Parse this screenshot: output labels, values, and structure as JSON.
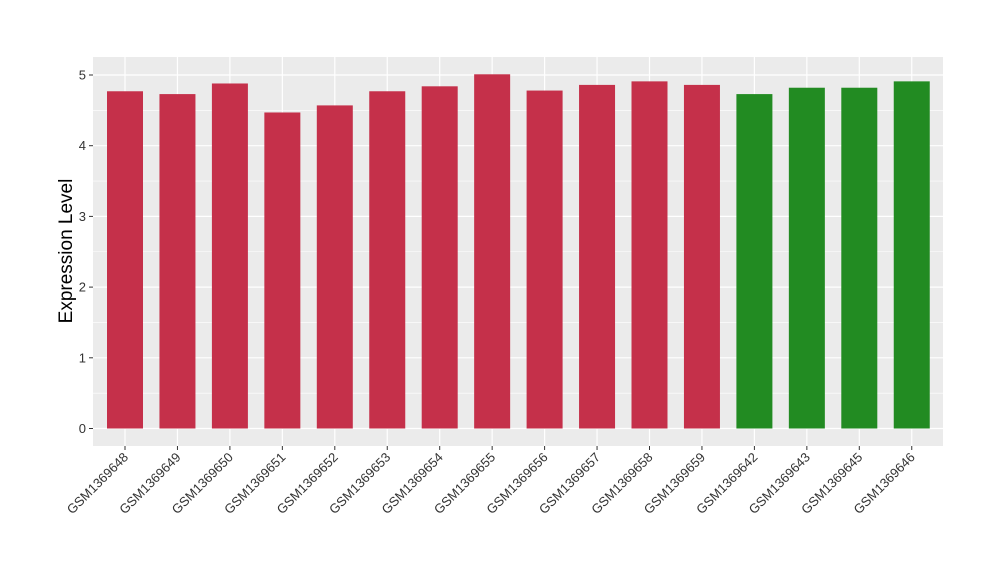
{
  "chart_data": {
    "type": "bar",
    "title": "",
    "xlabel": "",
    "ylabel": "Expression Level",
    "ylim": [
      0,
      5.25
    ],
    "yticks": [
      0,
      1,
      2,
      3,
      4,
      5
    ],
    "ytick_labels": [
      "0",
      "1",
      "2",
      "3",
      "4",
      "5"
    ],
    "grid": true,
    "legend": "none",
    "categories": [
      "GSM1369648",
      "GSM1369649",
      "GSM1369650",
      "GSM1369651",
      "GSM1369652",
      "GSM1369653",
      "GSM1369654",
      "GSM1369655",
      "GSM1369656",
      "GSM1369657",
      "GSM1369658",
      "GSM1369659",
      "GSM1369642",
      "GSM1369643",
      "GSM1369645",
      "GSM1369646"
    ],
    "values": [
      4.77,
      4.73,
      4.88,
      4.47,
      4.57,
      4.77,
      4.84,
      5.01,
      4.78,
      4.86,
      4.91,
      4.86,
      4.73,
      4.82,
      4.82,
      4.91
    ],
    "bar_colors": [
      "#c5304a",
      "#c5304a",
      "#c5304a",
      "#c5304a",
      "#c5304a",
      "#c5304a",
      "#c5304a",
      "#c5304a",
      "#c5304a",
      "#c5304a",
      "#c5304a",
      "#c5304a",
      "#228b22",
      "#228b22",
      "#228b22",
      "#228b22"
    ],
    "panel_background": "#ebebeb",
    "grid_color": "#ffffff"
  }
}
